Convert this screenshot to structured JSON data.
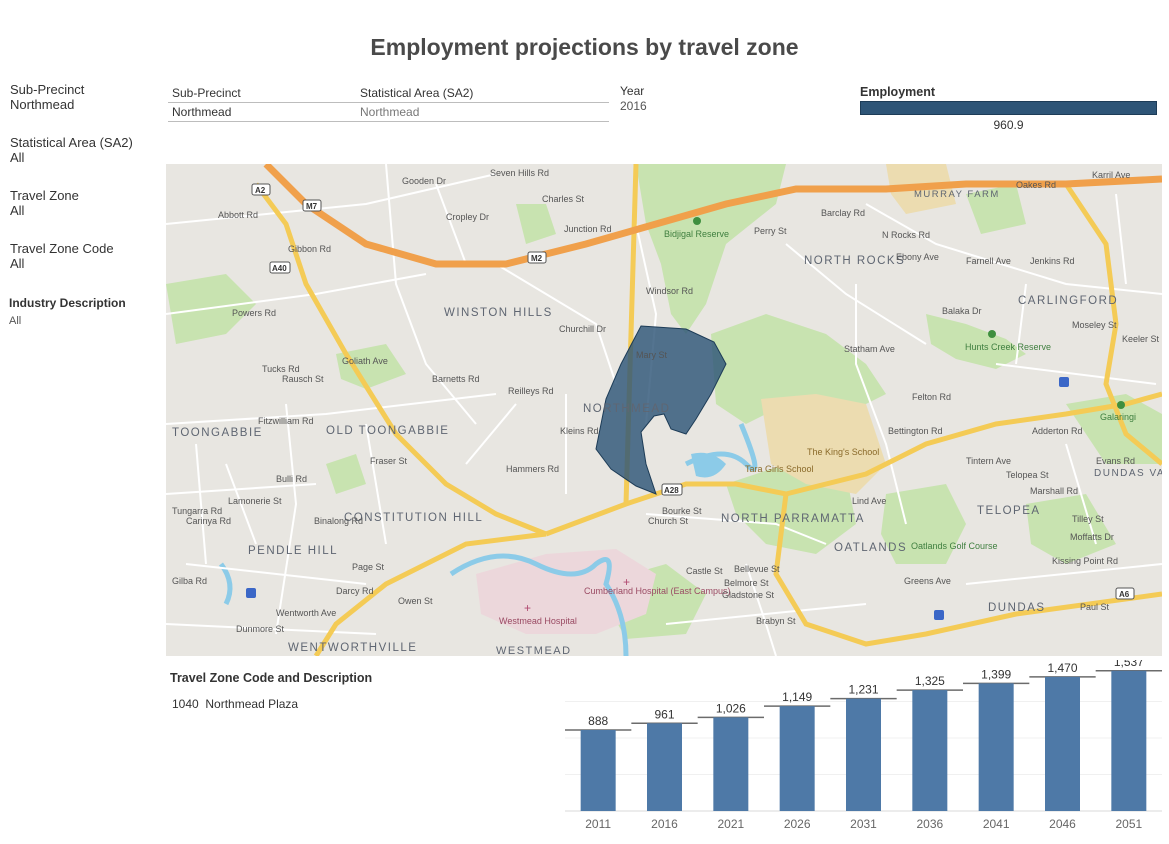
{
  "title": "Employment projections by travel zone",
  "filters": [
    {
      "label": "Sub-Precinct",
      "value": "Northmead"
    },
    {
      "label": "Statistical Area (SA2)",
      "value": "All"
    },
    {
      "label": "Travel Zone",
      "value": "All"
    },
    {
      "label": "Travel Zone Code",
      "value": "All"
    },
    {
      "label": "Industry Description",
      "value": "All"
    }
  ],
  "header_table": {
    "col1": "Sub-Precinct",
    "col2": "Statistical Area (SA2)",
    "row": {
      "sub_precinct": "Northmead",
      "sa2": "Northmead"
    }
  },
  "year": {
    "label": "Year",
    "value": "2016"
  },
  "employment": {
    "label": "Employment",
    "value": "960.9",
    "bar_color": "#2e5577"
  },
  "map": {
    "highlight_color": "#2e5577",
    "suburbs": [
      "WINSTON HILLS",
      "NORTH ROCKS",
      "CARLINGFORD",
      "MURRAY FARM",
      "NORTHMEAD",
      "OLD TOONGABBIE",
      "TOONGABBIE",
      "CONSTITUTION HILL",
      "PENDLE HILL",
      "WENTWORTHVILLE",
      "NORTH PARRAMATTA",
      "OATLANDS",
      "TELOPEA",
      "DUNDAS",
      "DUNDAS VALLEY",
      "WESTMEAD"
    ],
    "places": [
      "Bidjigal Reserve",
      "Hunts Creek Reserve",
      "The King's School",
      "Tara Girls School",
      "Oatlands Golf Course",
      "Cumberland Hospital (East Campus)",
      "Westmead Hospital",
      "Galaringi"
    ],
    "streets": [
      "Seven Hills Rd",
      "Abbott Rd",
      "Gibbon Rd",
      "Powers Rd",
      "Goliath Ave",
      "Rausch St",
      "Fitzwilliam Rd",
      "Barnetts Rd",
      "Hammers Rd",
      "Bulli Rd",
      "Churchill Dr",
      "Junction Rd",
      "Windsor Rd",
      "Barclay Rd",
      "N Rocks Rd",
      "Statham Ave",
      "Bettington Rd",
      "Church St",
      "Bourke St",
      "Page St",
      "Darcy Rd",
      "Owen St",
      "Wentworth Ave",
      "Dunmore St",
      "Kissing Point Rd",
      "Moseley St",
      "Felton Rd",
      "Evans Rd",
      "Greens Ave",
      "Ebony Ave",
      "Karril Ave",
      "Keeler St",
      "Mary St",
      "Charles St",
      "Gooden Dr",
      "Cropley Dr",
      "Perry St",
      "Belmore St",
      "Bellevue St",
      "Gladstone St",
      "Lind Ave",
      "Tintern Ave",
      "Telopea St",
      "Adderton Rd",
      "Marshall Rd",
      "Moffatts Dr",
      "Tilley St",
      "Paul St",
      "Brabyn St",
      "Castle St",
      "Jenkins Rd",
      "Oakes Rd",
      "Farnell Ave",
      "Balaka Dr",
      "Fraser St",
      "Binalong Rd",
      "Gilba Rd",
      "Reilleys Rd",
      "Kleins Rd",
      "Lamonerie St",
      "Tucks Rd",
      "Carinya Rd",
      "Tungarra Rd"
    ],
    "shields": [
      "A2",
      "M7",
      "M2",
      "A40",
      "A28",
      "A6"
    ]
  },
  "travel_zone": {
    "title": "Travel Zone Code and Description",
    "code": "1040",
    "description": "Northmead Plaza"
  },
  "chart_data": {
    "type": "bar",
    "categories": [
      "2011",
      "2016",
      "2021",
      "2026",
      "2031",
      "2036",
      "2041",
      "2046",
      "2051"
    ],
    "values": [
      888,
      961,
      1026,
      1149,
      1231,
      1325,
      1399,
      1470,
      1537
    ],
    "labels": [
      "888",
      "961",
      "1,026",
      "1,149",
      "1,231",
      "1,325",
      "1,399",
      "1,470",
      "1,537"
    ],
    "ylim": [
      0,
      1600
    ],
    "bar_color": "#4e79a7",
    "grid": true,
    "title": "",
    "xlabel": "",
    "ylabel": ""
  }
}
